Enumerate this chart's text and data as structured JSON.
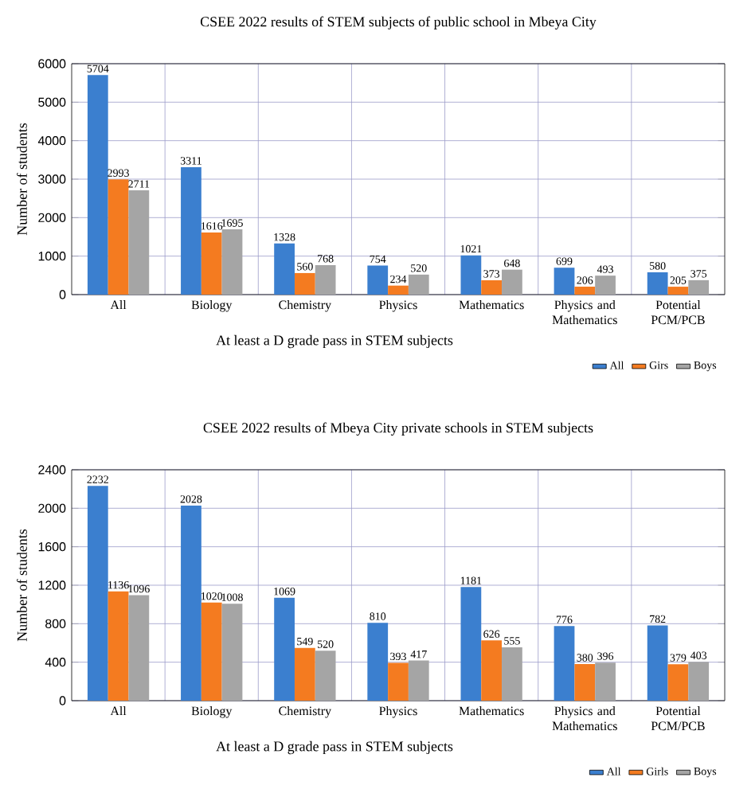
{
  "chart_data": [
    {
      "type": "bar",
      "title": "CSEE 2022 results of STEM subjects of public school in Mbeya City",
      "xlabel": "At least a D grade pass in STEM subjects",
      "ylabel": "Number of students",
      "categories": [
        "All",
        "Biology",
        "Chemistry",
        "Physics",
        "Mathematics",
        "Physics and Mathematics",
        "Potential PCM/PCB"
      ],
      "series": [
        {
          "name": "All",
          "color": "#3b7fcf",
          "values": [
            5704,
            3311,
            1328,
            754,
            1021,
            699,
            580
          ]
        },
        {
          "name": "Girs",
          "color": "#f47b20",
          "values": [
            2993,
            1616,
            560,
            234,
            373,
            206,
            205
          ]
        },
        {
          "name": "Boys",
          "color": "#a5a5a5",
          "values": [
            2711,
            1695,
            768,
            520,
            648,
            493,
            375
          ]
        }
      ],
      "ylim": [
        0,
        6000
      ],
      "yticks": [
        0,
        1000,
        2000,
        3000,
        4000,
        5000,
        6000
      ],
      "grid": true,
      "legend": "bottom right",
      "data_labels": true
    },
    {
      "type": "bar",
      "title": "CSEE 2022 results of Mbeya City private schools in STEM subjects",
      "xlabel": "At least a D grade pass in STEM subjects",
      "ylabel": "Number of students",
      "categories": [
        "All",
        "Biology",
        "Chemistry",
        "Physics",
        "Mathematics",
        "Physics and Mathematics",
        "Potential PCM/PCB"
      ],
      "series": [
        {
          "name": "All",
          "color": "#3b7fcf",
          "values": [
            2232,
            2028,
            1069,
            810,
            1181,
            776,
            782
          ]
        },
        {
          "name": "Girls",
          "color": "#f47b20",
          "values": [
            1136,
            1020,
            549,
            393,
            626,
            380,
            379
          ]
        },
        {
          "name": "Boys",
          "color": "#a5a5a5",
          "values": [
            1096,
            1008,
            520,
            417,
            555,
            396,
            403
          ]
        }
      ],
      "ylim": [
        0,
        2400
      ],
      "yticks": [
        0,
        400,
        800,
        1200,
        1600,
        2000,
        2400
      ],
      "grid": true,
      "legend": "bottom right",
      "data_labels": true
    }
  ]
}
